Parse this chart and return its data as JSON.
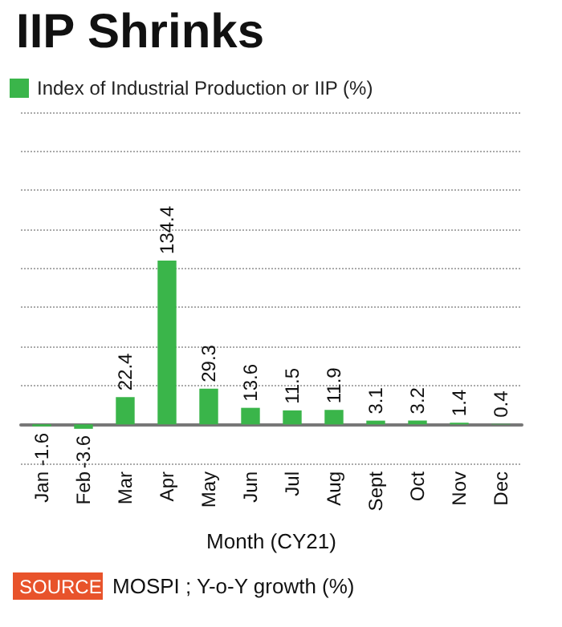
{
  "chart_data": {
    "type": "bar",
    "title": "IIP Shrinks",
    "xlabel": "Month (CY21)",
    "categories": [
      "Jan",
      "Feb",
      "Mar",
      "Apr",
      "May",
      "Jun",
      "Jul",
      "Aug",
      "Sept",
      "Oct",
      "Nov",
      "Dec"
    ],
    "series": [
      {
        "name": "Index of Industrial Production or IIP (%)",
        "color": "#3ab54a",
        "values": [
          -1.6,
          -3.6,
          22.4,
          134.4,
          29.3,
          13.6,
          11.5,
          11.9,
          3.1,
          3.2,
          1.4,
          0.4
        ]
      }
    ],
    "ylim": [
      -32,
      256
    ],
    "yticks": [
      {
        "value": -32,
        "label": null
      },
      {
        "value": 0,
        "label": null
      },
      {
        "value": 32,
        "label": null
      },
      {
        "value": 64,
        "label": null
      },
      {
        "value": 96,
        "label": null
      },
      {
        "value": 128,
        "label": null
      },
      {
        "value": 160,
        "label": null
      },
      {
        "value": 192,
        "label": null
      },
      {
        "value": 224,
        "label": null
      },
      {
        "value": 256,
        "label": null
      }
    ],
    "grid": "y",
    "legend": "top left",
    "data_labels": true,
    "annotations": [
      "SOURCE",
      "MOSPI ; Y-o-Y growth (%)"
    ]
  }
}
